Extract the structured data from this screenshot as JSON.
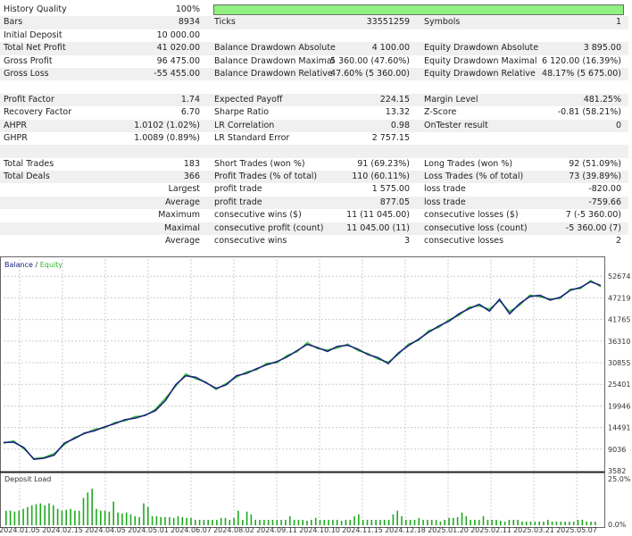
{
  "report": {
    "rows": [
      {
        "l1": "History Quality",
        "v1": "100%",
        "quality_fraction": 1.0
      },
      {
        "l1": "Bars",
        "v1": "8934",
        "l2": "Ticks",
        "v2": "33551259",
        "l3": "Symbols",
        "v3": "1"
      },
      {
        "l1": "Initial Deposit",
        "v1": "10 000.00"
      },
      {
        "l1": "Total Net Profit",
        "v1": "41 020.00",
        "l2": "Balance Drawdown Absolute",
        "v2": "4 100.00",
        "l3": "Equity Drawdown Absolute",
        "v3": "3 895.00"
      },
      {
        "l1": "Gross Profit",
        "v1": "96 475.00",
        "l2": "Balance Drawdown Maximal",
        "v2": "5 360.00 (47.60%)",
        "l3": "Equity Drawdown Maximal",
        "v3": "6 120.00 (16.39%)"
      },
      {
        "l1": "Gross Loss",
        "v1": "-55 455.00",
        "l2": "Balance Drawdown Relative",
        "v2": "47.60% (5 360.00)",
        "l3": "Equity Drawdown Relative",
        "v3": "48.17% (5 675.00)"
      },
      {},
      {
        "l1": "Profit Factor",
        "v1": "1.74",
        "l2": "Expected Payoff",
        "v2": "224.15",
        "l3": "Margin Level",
        "v3": "481.25%"
      },
      {
        "l1": "Recovery Factor",
        "v1": "6.70",
        "l2": "Sharpe Ratio",
        "v2": "13.32",
        "l3": "Z-Score",
        "v3": "-0.81 (58.21%)"
      },
      {
        "l1": "AHPR",
        "v1": "1.0102 (1.02%)",
        "l2": "LR Correlation",
        "v2": "0.98",
        "l3": "OnTester result",
        "v3": "0"
      },
      {
        "l1": "GHPR",
        "v1": "1.0089 (0.89%)",
        "l2": "LR Standard Error",
        "v2": "2 757.15"
      },
      {},
      {
        "l1": "Total Trades",
        "v1": "183",
        "l2": "Short Trades (won %)",
        "v2": "91 (69.23%)",
        "l3": "Long Trades (won %)",
        "v3": "92 (51.09%)"
      },
      {
        "l1": "Total Deals",
        "v1": "366",
        "l2": "Profit Trades (% of total)",
        "v2": "110 (60.11%)",
        "l3": "Loss Trades (% of total)",
        "v3": "73 (39.89%)"
      },
      {
        "v1": "Largest",
        "l2": "profit trade",
        "v2": "1 575.00",
        "l3": "loss trade",
        "v3": "-820.00"
      },
      {
        "v1": "Average",
        "l2": "profit trade",
        "v2": "877.05",
        "l3": "loss trade",
        "v3": "-759.66"
      },
      {
        "v1": "Maximum",
        "l2": "consecutive wins ($)",
        "v2": "11 (11 045.00)",
        "l3": "consecutive losses ($)",
        "v3": "7 (-5 360.00)"
      },
      {
        "v1": "Maximal",
        "l2": "consecutive profit (count)",
        "v2": "11 045.00 (11)",
        "l3": "consecutive loss (count)",
        "v3": "-5 360.00 (7)"
      },
      {
        "v1": "Average",
        "l2": "consecutive wins",
        "v2": "3",
        "l3": "consecutive losses",
        "v3": "2"
      }
    ]
  },
  "chart_data": [
    {
      "type": "line",
      "legend": {
        "balance": "Balance",
        "separator": " / ",
        "equity": "Equity"
      },
      "colors": {
        "balance": "#1a237e",
        "equity": "#2db82d"
      },
      "y_ticks": [
        "52674",
        "47219",
        "41765",
        "36310",
        "30855",
        "25401",
        "19946",
        "14491",
        "9036",
        "3582"
      ],
      "ylim": [
        3582,
        57545
      ],
      "grid": true,
      "series": [
        {
          "name": "Balance",
          "values": [
            10800,
            10900,
            9500,
            6500,
            6800,
            7600,
            10600,
            11800,
            13200,
            13800,
            14800,
            15600,
            16600,
            17000,
            17800,
            18900,
            21500,
            25500,
            27800,
            27400,
            26000,
            24600,
            25500,
            27800,
            28400,
            29600,
            30600,
            31400,
            32600,
            34200,
            35800,
            35000,
            34000,
            35300,
            35600,
            34600,
            33200,
            32400,
            30900,
            33600,
            35500,
            37100,
            38900,
            40500,
            41700,
            43600,
            44900,
            46000,
            44300,
            47300,
            43600,
            46200,
            48000,
            48300,
            47100,
            47800,
            49600,
            50300,
            51800,
            50800
          ]
        },
        {
          "name": "Equity",
          "values": [
            10600,
            11200,
            9200,
            6700,
            7000,
            8000,
            10200,
            12100,
            13000,
            14200,
            14500,
            15900,
            16300,
            17400,
            17600,
            19300,
            22100,
            25100,
            28300,
            27000,
            26200,
            24300,
            25900,
            27400,
            28800,
            29300,
            31000,
            31100,
            33000,
            33900,
            36300,
            34700,
            34400,
            34900,
            35900,
            34200,
            33500,
            32000,
            31300,
            33200,
            35900,
            36800,
            39300,
            40100,
            42100,
            43200,
            45300,
            45600,
            44800,
            46900,
            44200,
            45800,
            48400,
            47900,
            47400,
            47500,
            49900,
            50000,
            52100,
            50500
          ]
        }
      ],
      "x_ticks": [
        "2024.01.05",
        "2024.02.15",
        "2024.04.05",
        "2024.05.01",
        "2024.06.07",
        "2024.08.02",
        "2024.09.11",
        "2024.10.10",
        "2024.11.15",
        "2024.12.18",
        "2025.01.20",
        "2025.02.11",
        "2025.03.21",
        "2025.05.07"
      ]
    },
    {
      "type": "bar",
      "title": "Deposit Load",
      "y_ticks": [
        "25.0%",
        "0.0%"
      ],
      "ylim": [
        0,
        25
      ],
      "color": "#1faa1f",
      "values": [
        8,
        8,
        7.5,
        8,
        9,
        10,
        11,
        11.5,
        12,
        11,
        12,
        11,
        9,
        8,
        8.5,
        9,
        8,
        8,
        15,
        18,
        20,
        9,
        8,
        8,
        7.5,
        13,
        7,
        6.5,
        7,
        6,
        5,
        4.5,
        12,
        10,
        5,
        5,
        4.5,
        4.5,
        4.5,
        4,
        5,
        4.5,
        4,
        4,
        3,
        3,
        3,
        3,
        3,
        3,
        4,
        4,
        3,
        4,
        8,
        3,
        7.5,
        6,
        3,
        3,
        3,
        3,
        3,
        3,
        3,
        3,
        5,
        3,
        3,
        3,
        2.5,
        3,
        4,
        3,
        3,
        3,
        3,
        3,
        2.5,
        3,
        3,
        5,
        6,
        3,
        3,
        3,
        3,
        3,
        3,
        3,
        6,
        8,
        5,
        3,
        3,
        3,
        4,
        3,
        3,
        3,
        3,
        2,
        3,
        4,
        4,
        4.5,
        7,
        5,
        3,
        3,
        3,
        5,
        3,
        3,
        3,
        2.5,
        2,
        3,
        3,
        3,
        2,
        2,
        2,
        2,
        2,
        2,
        3,
        2,
        2,
        2,
        2,
        2,
        2,
        3,
        3,
        2,
        2,
        2
      ]
    }
  ]
}
